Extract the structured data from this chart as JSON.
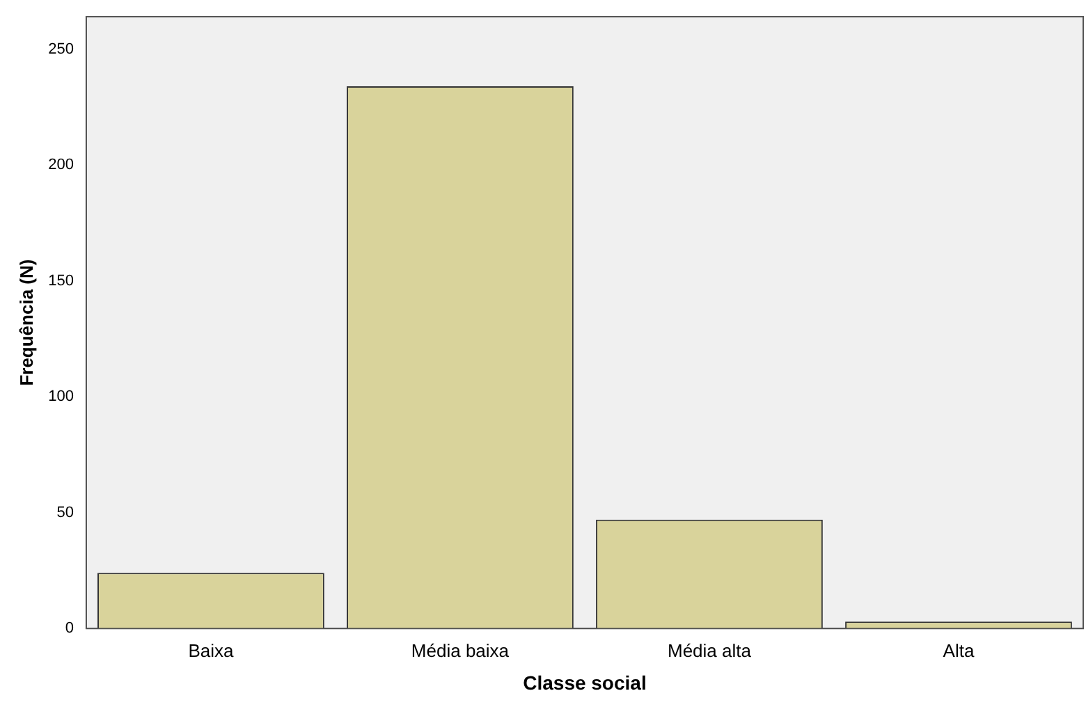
{
  "chart_data": {
    "type": "bar",
    "xlabel": "Classe social",
    "ylabel": "Frequência (N)",
    "categories": [
      "Baixa",
      "Média baixa",
      "Média alta",
      "Alta"
    ],
    "values": [
      24,
      234,
      47,
      3
    ],
    "color": "#d9d39b",
    "ylim": [
      0,
      264
    ],
    "yticks": [
      0,
      50,
      100,
      150,
      200,
      250
    ],
    "grid": false,
    "legend": false
  }
}
